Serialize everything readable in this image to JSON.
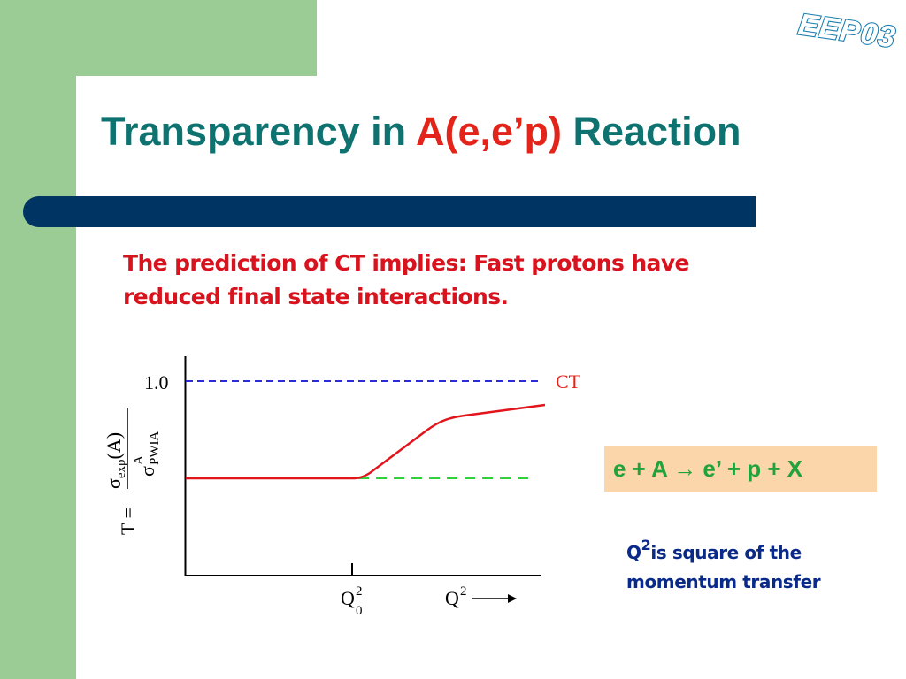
{
  "logo": {
    "text": "EEP03"
  },
  "slide": {
    "title_prefix": "Transparency in ",
    "title_highlight": "A(e,e’p)",
    "title_suffix": " Reaction",
    "statement_line1": "The prediction of CT implies: Fast protons have",
    "statement_line2": "reduced final state interactions."
  },
  "graph": {
    "y_tick_label": "1.0",
    "ct_label": "CT",
    "formula_lhs": "T =",
    "numerator_sigma": "σ",
    "numerator_sub": "exp",
    "numerator_arg": "(A)",
    "denominator_sigma": "σ",
    "denominator_sup": "A",
    "denominator_sub": "PWIA",
    "q0_base": "Q",
    "q0_sup": "2",
    "q0_sub": "0",
    "q_base": "Q",
    "q_sup": "2"
  },
  "reaction": {
    "text": "e + A → e’ + p + X"
  },
  "note": {
    "q": "Q",
    "sup": "2",
    "line1_rest": "is square of the",
    "line2": "momentum transfer"
  },
  "colors": {
    "green_band": "#9ccc96",
    "title_teal": "#0e7370",
    "highlight_red": "#e2241a",
    "bar_navy": "#003462",
    "curve_red": "#e3151c",
    "dashed_blue": "#2b2bd8",
    "dashed_green": "#2fd23a",
    "reaction_bg": "#fbd6aa",
    "reaction_text": "#22a23a",
    "note_blue": "#0a2a8a"
  }
}
